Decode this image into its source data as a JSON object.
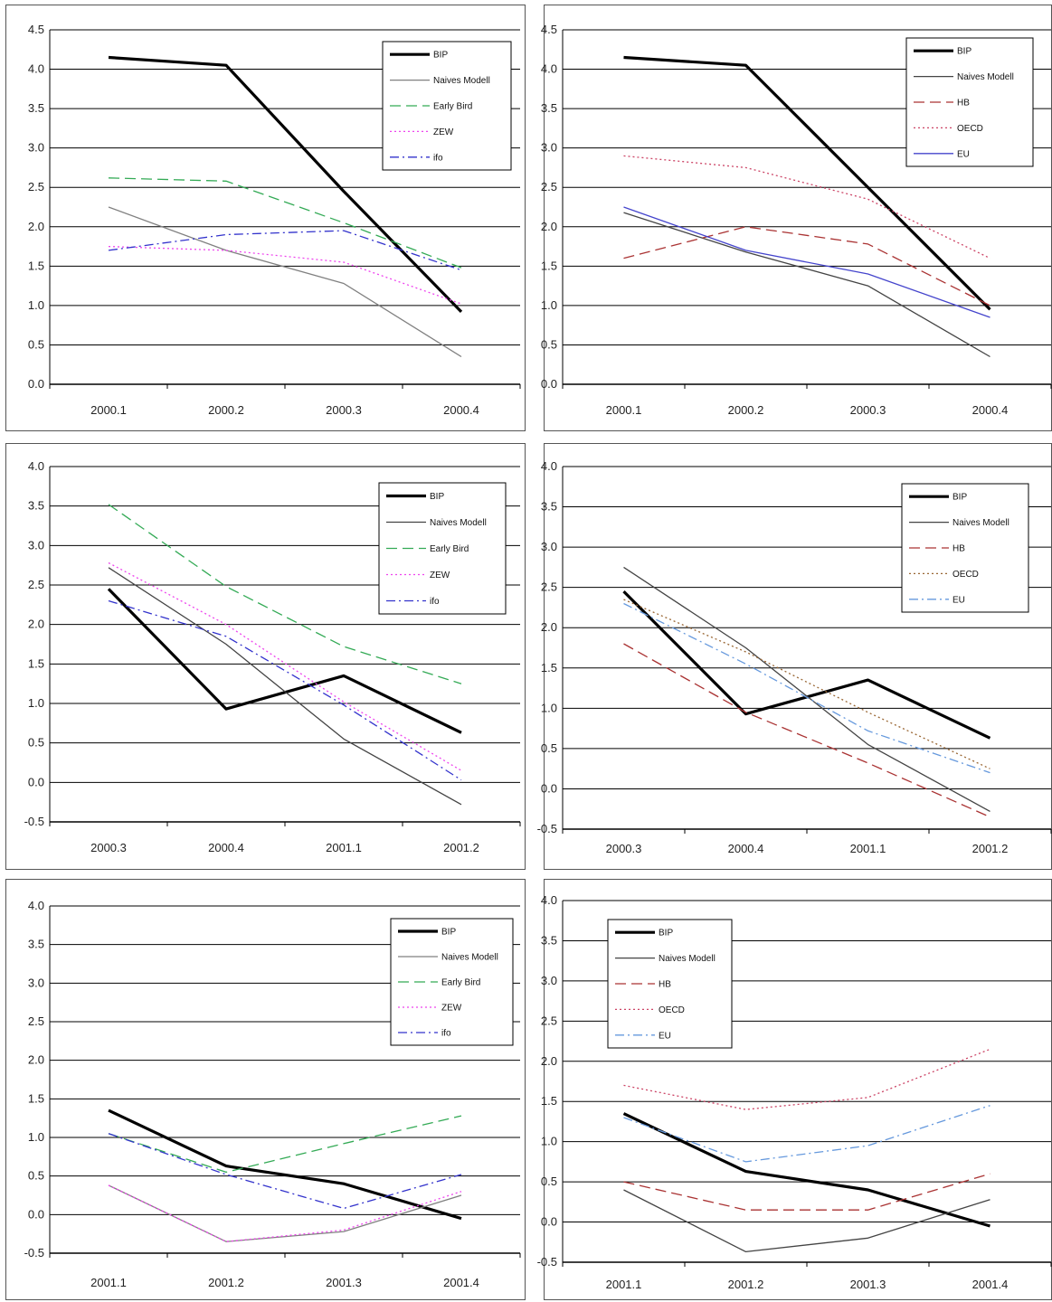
{
  "chart_data": [
    {
      "type": "line",
      "categories": [
        "2000.1",
        "2000.2",
        "2000.3",
        "2000.4"
      ],
      "yticks": [
        "0.0",
        "0.5",
        "1.0",
        "1.5",
        "2.0",
        "2.5",
        "3.0",
        "3.5",
        "4.0",
        "4.5"
      ],
      "ylim": [
        0,
        4.5
      ],
      "legend_position": "top-right",
      "series": [
        {
          "name": "BIP",
          "values": [
            4.15,
            4.05,
            2.45,
            0.92
          ],
          "color": "#000000",
          "style": "bold"
        },
        {
          "name": "Naives Modell",
          "values": [
            2.25,
            1.7,
            1.28,
            0.35
          ],
          "color": "#808080",
          "style": "solid"
        },
        {
          "name": "Early Bird",
          "values": [
            2.62,
            2.58,
            2.05,
            1.48
          ],
          "color": "#33aa55",
          "style": "longdash"
        },
        {
          "name": "ZEW",
          "values": [
            1.75,
            1.7,
            1.55,
            1.02
          ],
          "color": "#ee44ee",
          "style": "dot"
        },
        {
          "name": "ifo",
          "values": [
            1.7,
            1.9,
            1.95,
            1.45
          ],
          "color": "#3333cc",
          "style": "dashdot"
        }
      ]
    },
    {
      "type": "line",
      "categories": [
        "2000.1",
        "2000.2",
        "2000.3",
        "2000.4"
      ],
      "yticks": [
        "0.0",
        "0.5",
        "1.0",
        "1.5",
        "2.0",
        "2.5",
        "3.0",
        "3.5",
        "4.0",
        "4.5"
      ],
      "ylim": [
        0,
        4.5
      ],
      "legend_position": "top-right",
      "series": [
        {
          "name": "BIP",
          "values": [
            4.15,
            4.05,
            2.5,
            0.95
          ],
          "color": "#000000",
          "style": "bold"
        },
        {
          "name": "Naives Modell",
          "values": [
            2.18,
            1.68,
            1.25,
            0.35
          ],
          "color": "#444444",
          "style": "solid"
        },
        {
          "name": "HB",
          "values": [
            1.6,
            2.0,
            1.78,
            1.0
          ],
          "color": "#aa3333",
          "style": "longdash"
        },
        {
          "name": "OECD",
          "values": [
            2.9,
            2.75,
            2.35,
            1.6
          ],
          "color": "#cc4466",
          "style": "dot"
        },
        {
          "name": "EU",
          "values": [
            2.25,
            1.7,
            1.4,
            0.85
          ],
          "color": "#4444cc",
          "style": "solid"
        }
      ]
    },
    {
      "type": "line",
      "categories": [
        "2000.3",
        "2000.4",
        "2001.1",
        "2001.2"
      ],
      "yticks": [
        "-0.5",
        "0.0",
        "0.5",
        "1.0",
        "1.5",
        "2.0",
        "2.5",
        "3.0",
        "3.5",
        "4.0"
      ],
      "ylim": [
        -0.5,
        4.0
      ],
      "legend_position": "top-right",
      "series": [
        {
          "name": "BIP",
          "values": [
            2.45,
            0.93,
            1.35,
            0.63
          ],
          "color": "#000000",
          "style": "bold"
        },
        {
          "name": "Naives Modell",
          "values": [
            2.72,
            1.75,
            0.55,
            -0.28
          ],
          "color": "#444444",
          "style": "solid"
        },
        {
          "name": "Early Bird",
          "values": [
            3.52,
            2.48,
            1.72,
            1.25
          ],
          "color": "#33aa55",
          "style": "longdash"
        },
        {
          "name": "ZEW",
          "values": [
            2.78,
            2.0,
            1.02,
            0.15
          ],
          "color": "#ee44ee",
          "style": "dot"
        },
        {
          "name": "ifo",
          "values": [
            2.3,
            1.85,
            0.98,
            0.03
          ],
          "color": "#3333cc",
          "style": "dashdot"
        }
      ]
    },
    {
      "type": "line",
      "categories": [
        "2000.3",
        "2000.4",
        "2001.1",
        "2001.2"
      ],
      "yticks": [
        "-0.5",
        "0.0",
        "0.5",
        "1.0",
        "1.5",
        "2.0",
        "2.5",
        "3.0",
        "3.5",
        "4.0"
      ],
      "ylim": [
        -0.5,
        4.0
      ],
      "legend_position": "top-right",
      "series": [
        {
          "name": "BIP",
          "values": [
            2.45,
            0.93,
            1.35,
            0.63
          ],
          "color": "#000000",
          "style": "bold"
        },
        {
          "name": "Naives Modell",
          "values": [
            2.75,
            1.75,
            0.55,
            -0.28
          ],
          "color": "#444444",
          "style": "solid"
        },
        {
          "name": "HB",
          "values": [
            1.8,
            0.95,
            0.32,
            -0.35
          ],
          "color": "#aa3333",
          "style": "longdash"
        },
        {
          "name": "OECD",
          "values": [
            2.35,
            1.7,
            0.95,
            0.25
          ],
          "color": "#996633",
          "style": "dot"
        },
        {
          "name": "EU",
          "values": [
            2.3,
            1.55,
            0.72,
            0.2
          ],
          "color": "#6699dd",
          "style": "dashdot"
        }
      ]
    },
    {
      "type": "line",
      "categories": [
        "2001.1",
        "2001.2",
        "2001.3",
        "2001.4"
      ],
      "yticks": [
        "-0.5",
        "0.0",
        "0.5",
        "1.0",
        "1.5",
        "2.0",
        "2.5",
        "3.0",
        "3.5",
        "4.0"
      ],
      "ylim": [
        -0.5,
        4.0
      ],
      "legend_position": "top-right",
      "series": [
        {
          "name": "BIP",
          "values": [
            1.35,
            0.63,
            0.4,
            -0.05
          ],
          "color": "#000000",
          "style": "bold"
        },
        {
          "name": "Naives Modell",
          "values": [
            0.38,
            -0.35,
            -0.22,
            0.25
          ],
          "color": "#808080",
          "style": "solid"
        },
        {
          "name": "Early Bird",
          "values": [
            1.05,
            0.55,
            0.92,
            1.28
          ],
          "color": "#33aa55",
          "style": "longdash"
        },
        {
          "name": "ZEW",
          "values": [
            0.38,
            -0.35,
            -0.2,
            0.3
          ],
          "color": "#ee44ee",
          "style": "dot"
        },
        {
          "name": "ifo",
          "values": [
            1.05,
            0.52,
            0.08,
            0.52
          ],
          "color": "#3333cc",
          "style": "dashdot"
        }
      ]
    },
    {
      "type": "line",
      "categories": [
        "2001.1",
        "2001.2",
        "2001.3",
        "2001.4"
      ],
      "yticks": [
        "-0.5",
        "0.0",
        "0.5",
        "1.0",
        "1.5",
        "2.0",
        "2.5",
        "3.0",
        "3.5",
        "4.0"
      ],
      "ylim": [
        -0.5,
        4.0
      ],
      "legend_position": "top-left",
      "series": [
        {
          "name": "BIP",
          "values": [
            1.35,
            0.63,
            0.4,
            -0.05
          ],
          "color": "#000000",
          "style": "bold"
        },
        {
          "name": "Naives Modell",
          "values": [
            0.4,
            -0.37,
            -0.2,
            0.28
          ],
          "color": "#444444",
          "style": "solid"
        },
        {
          "name": "HB",
          "values": [
            0.5,
            0.15,
            0.15,
            0.6
          ],
          "color": "#aa3333",
          "style": "longdash"
        },
        {
          "name": "OECD",
          "values": [
            1.7,
            1.4,
            1.55,
            2.15
          ],
          "color": "#cc4466",
          "style": "dot"
        },
        {
          "name": "EU",
          "values": [
            1.3,
            0.75,
            0.95,
            1.45
          ],
          "color": "#6699dd",
          "style": "dashdot"
        }
      ]
    }
  ]
}
